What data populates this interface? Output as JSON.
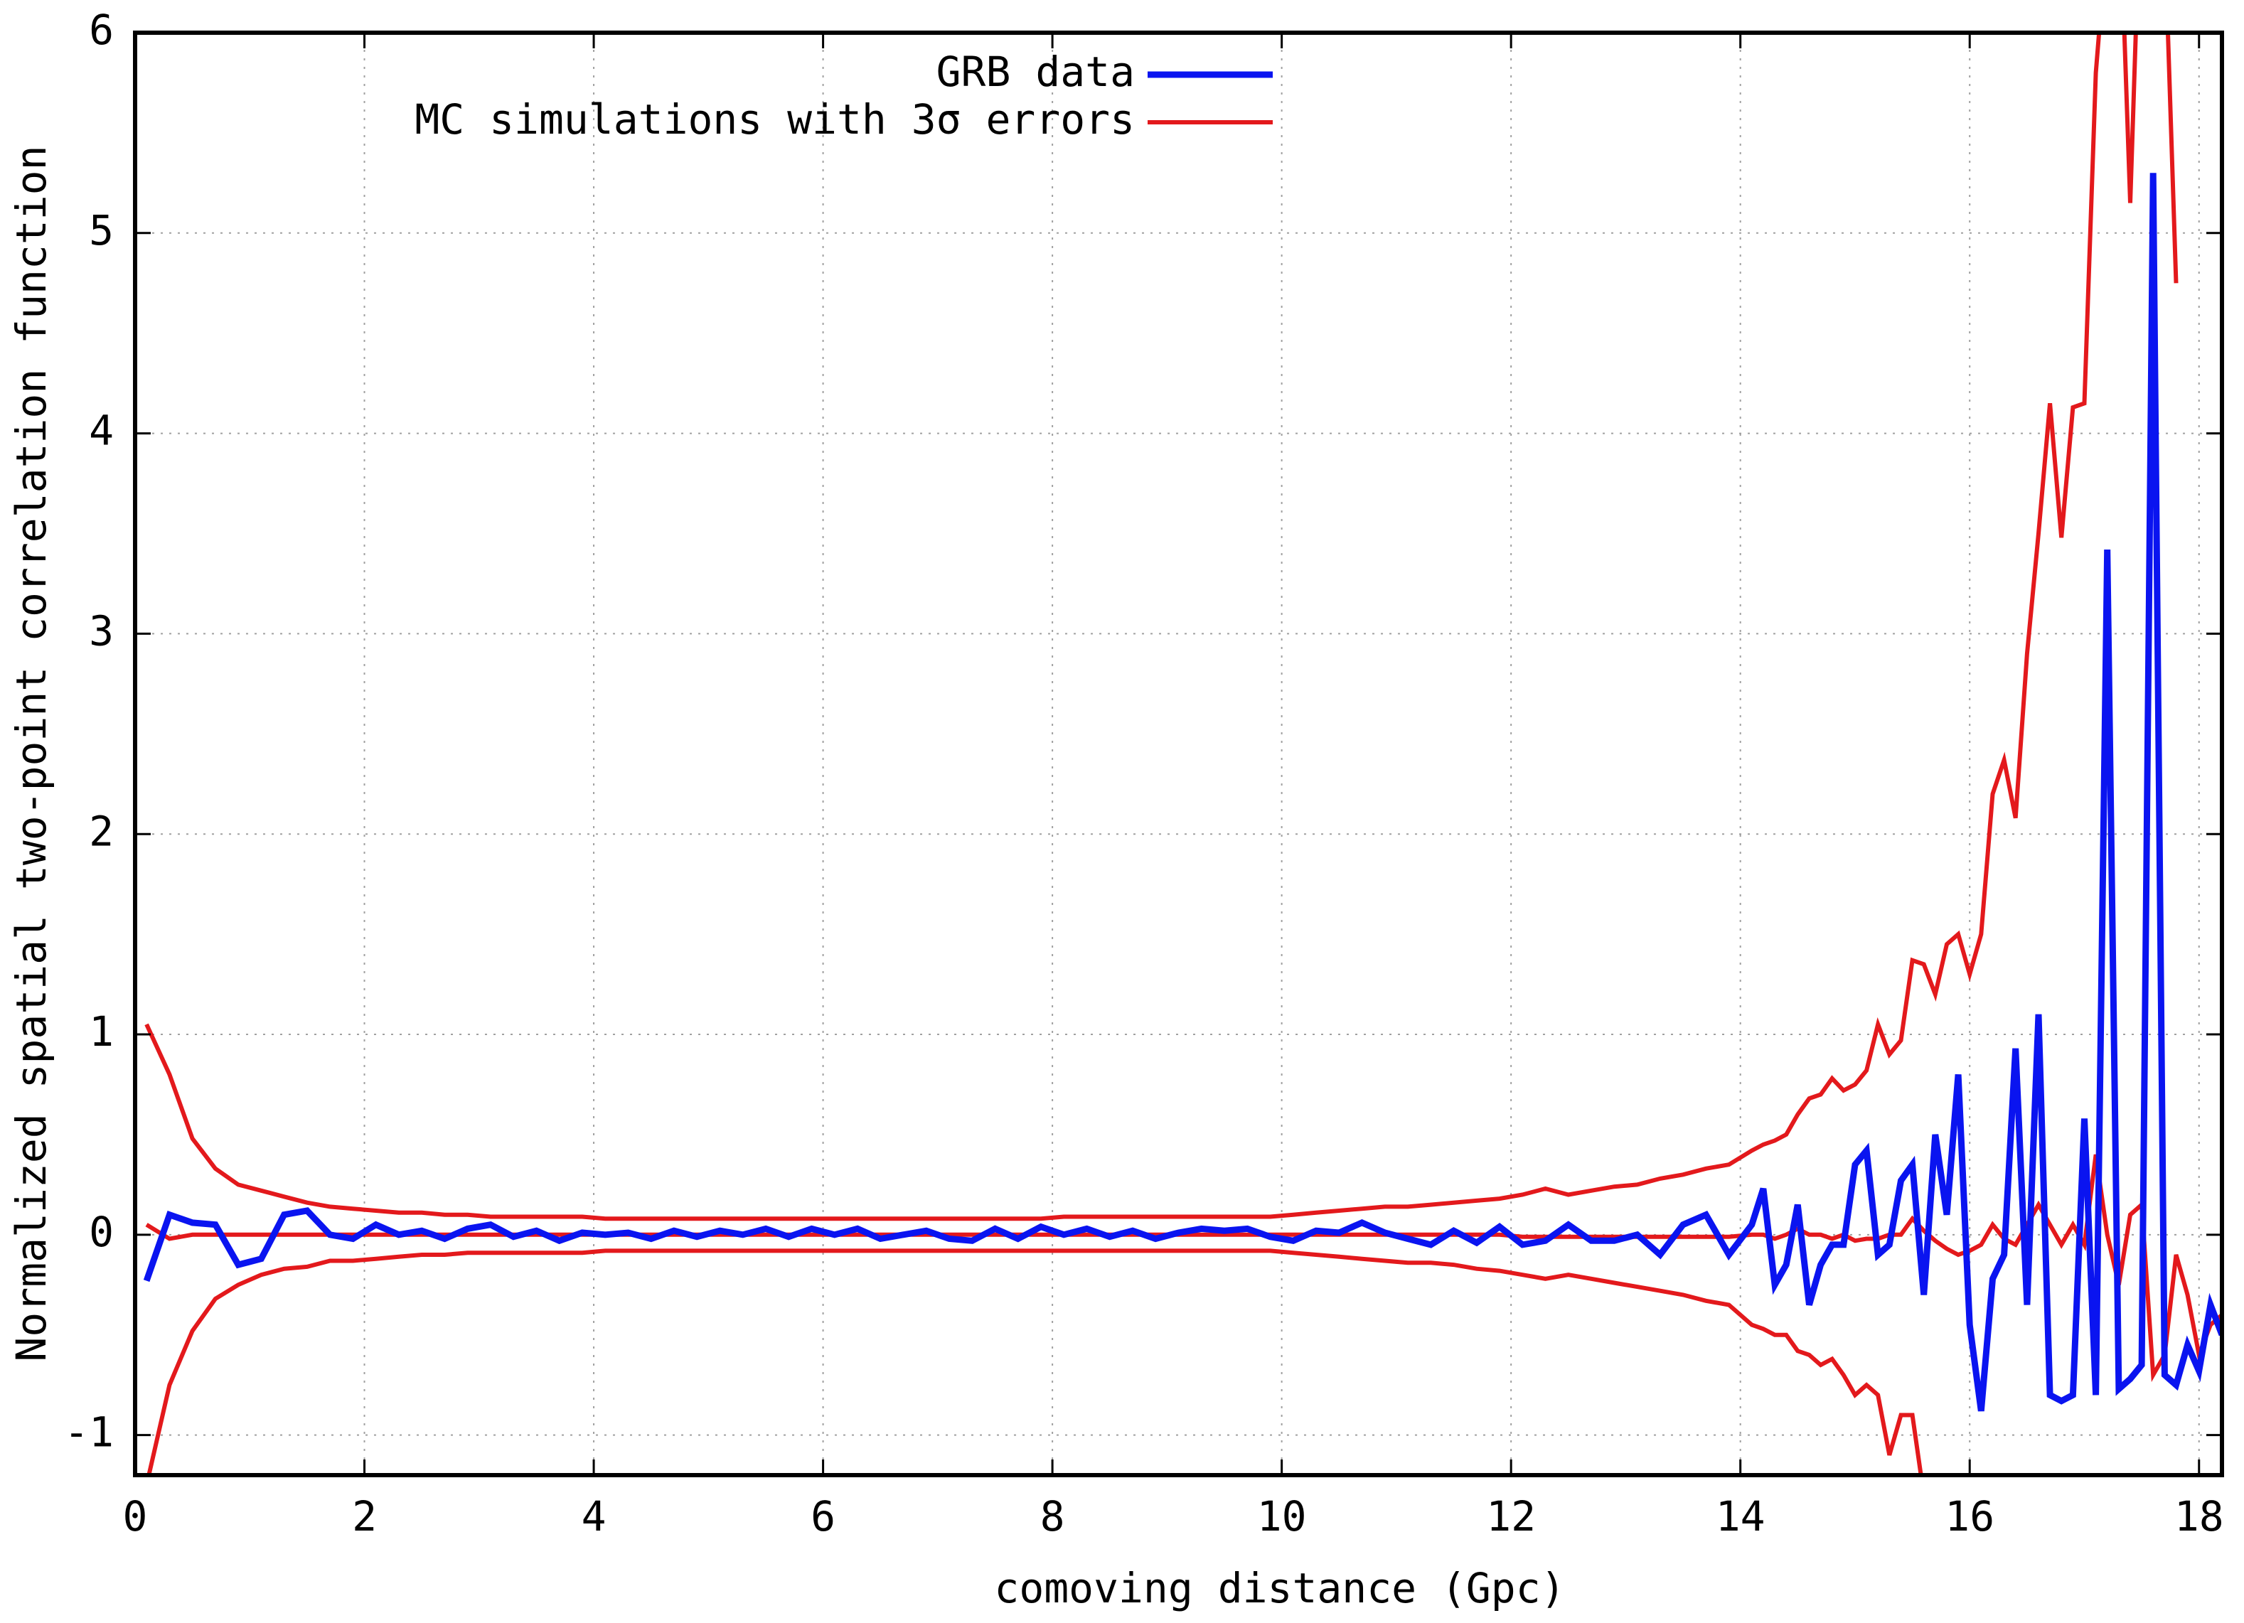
{
  "chart_data": {
    "type": "line",
    "x_label": "comoving distance (Gpc)",
    "y_label": "Normalized spatial two-point correlation function",
    "xlim": [
      0,
      18.2
    ],
    "ylim": [
      -1.2,
      6
    ],
    "xticks": [
      0,
      2,
      4,
      6,
      8,
      10,
      12,
      14,
      16,
      18
    ],
    "yticks": [
      -1,
      0,
      1,
      2,
      3,
      4,
      5,
      6
    ],
    "grid": true,
    "legend": "top",
    "x": [
      0.1,
      0.3,
      0.5,
      0.7,
      0.9,
      1.1,
      1.3,
      1.5,
      1.7,
      1.9,
      2.1,
      2.3,
      2.5,
      2.7,
      2.9,
      3.1,
      3.3,
      3.5,
      3.7,
      3.9,
      4.1,
      4.3,
      4.5,
      4.7,
      4.9,
      5.1,
      5.3,
      5.5,
      5.7,
      5.9,
      6.1,
      6.3,
      6.5,
      6.7,
      6.9,
      7.1,
      7.3,
      7.5,
      7.7,
      7.9,
      8.1,
      8.3,
      8.5,
      8.7,
      8.9,
      9.1,
      9.3,
      9.5,
      9.7,
      9.9,
      10.1,
      10.3,
      10.5,
      10.7,
      10.9,
      11.1,
      11.3,
      11.5,
      11.7,
      11.9,
      12.1,
      12.3,
      12.5,
      12.7,
      12.9,
      13.1,
      13.3,
      13.5,
      13.7,
      13.9,
      14.1,
      14.2,
      14.3,
      14.4,
      14.5,
      14.6,
      14.7,
      14.8,
      14.9,
      15.0,
      15.1,
      15.2,
      15.3,
      15.4,
      15.5,
      15.6,
      15.7,
      15.8,
      15.9,
      16.0,
      16.1,
      16.2,
      16.3,
      16.4,
      16.5,
      16.6,
      16.7,
      16.8,
      16.9,
      17.0,
      17.1,
      17.2,
      17.3,
      17.4,
      17.5,
      17.6,
      17.7,
      17.8,
      17.9,
      18.0,
      18.1,
      18.2
    ],
    "series": [
      {
        "name": "GRB data",
        "color": "#0a14f0",
        "values": [
          -0.23,
          0.1,
          0.06,
          0.05,
          -0.15,
          -0.12,
          0.1,
          0.12,
          0.0,
          -0.02,
          0.05,
          0.0,
          0.02,
          -0.02,
          0.03,
          0.05,
          -0.01,
          0.02,
          -0.03,
          0.01,
          0.0,
          0.01,
          -0.02,
          0.02,
          -0.01,
          0.02,
          0.0,
          0.03,
          -0.01,
          0.03,
          0.0,
          0.03,
          -0.02,
          0.0,
          0.02,
          -0.02,
          -0.03,
          0.03,
          -0.02,
          0.04,
          0.0,
          0.03,
          -0.01,
          0.02,
          -0.02,
          0.01,
          0.03,
          0.02,
          0.03,
          -0.01,
          -0.03,
          0.02,
          0.01,
          0.06,
          0.01,
          -0.02,
          -0.05,
          0.02,
          -0.04,
          0.04,
          -0.05,
          -0.03,
          0.05,
          -0.03,
          -0.03,
          0.0,
          -0.1,
          0.05,
          0.1,
          -0.1,
          0.05,
          0.23,
          -0.25,
          -0.15,
          0.15,
          -0.35,
          -0.15,
          -0.05,
          -0.05,
          0.35,
          0.42,
          -0.1,
          -0.05,
          0.27,
          0.35,
          -0.3,
          0.5,
          0.1,
          0.8,
          -0.45,
          -0.88,
          -0.22,
          -0.1,
          0.93,
          -0.35,
          1.1,
          -0.8,
          -0.83,
          -0.8,
          0.58,
          -0.8,
          3.42,
          -0.77,
          -0.72,
          -0.65,
          5.3,
          -0.7,
          -0.75,
          -0.55,
          -0.68,
          -0.35,
          -0.5
        ]
      },
      {
        "name": "MC simulations with 3σ errors",
        "color": "#e3191c",
        "values": [
          0.05,
          -0.02,
          0.0,
          0.0,
          0.0,
          0.0,
          0.0,
          0.0,
          0.0,
          0.0,
          0.0,
          0.0,
          0.0,
          0.0,
          0.0,
          0.0,
          0.0,
          0.0,
          0.0,
          0.0,
          0.0,
          0.0,
          0.0,
          0.0,
          0.0,
          0.0,
          0.0,
          0.0,
          0.0,
          0.0,
          0.0,
          0.0,
          0.0,
          0.0,
          0.0,
          0.0,
          0.0,
          0.0,
          0.0,
          0.0,
          0.0,
          0.0,
          0.0,
          0.0,
          0.0,
          0.0,
          0.0,
          0.0,
          0.0,
          0.0,
          0.0,
          0.0,
          0.0,
          0.0,
          0.0,
          0.0,
          0.0,
          0.0,
          0.0,
          0.0,
          -0.01,
          -0.01,
          -0.01,
          -0.01,
          -0.01,
          -0.01,
          -0.01,
          -0.01,
          -0.01,
          -0.01,
          0.0,
          0.0,
          -0.02,
          0.0,
          0.03,
          0.0,
          0.0,
          -0.02,
          0.0,
          -0.03,
          -0.02,
          -0.02,
          0.0,
          0.0,
          0.08,
          0.02,
          -0.03,
          -0.07,
          -0.1,
          -0.08,
          -0.05,
          0.05,
          -0.02,
          -0.05,
          0.05,
          0.15,
          0.05,
          -0.05,
          0.05,
          -0.05,
          0.4,
          0.0,
          -0.25,
          0.1,
          0.15,
          -0.7,
          -0.6,
          -0.1,
          -0.3,
          -0.6,
          -0.45,
          -0.4
        ],
        "upper": [
          1.05,
          0.8,
          0.48,
          0.33,
          0.25,
          0.22,
          0.19,
          0.16,
          0.14,
          0.13,
          0.12,
          0.11,
          0.11,
          0.1,
          0.1,
          0.09,
          0.09,
          0.09,
          0.09,
          0.09,
          0.08,
          0.08,
          0.08,
          0.08,
          0.08,
          0.08,
          0.08,
          0.08,
          0.08,
          0.08,
          0.08,
          0.08,
          0.08,
          0.08,
          0.08,
          0.08,
          0.08,
          0.08,
          0.08,
          0.08,
          0.09,
          0.09,
          0.09,
          0.09,
          0.09,
          0.09,
          0.09,
          0.09,
          0.09,
          0.09,
          0.1,
          0.11,
          0.12,
          0.13,
          0.14,
          0.14,
          0.15,
          0.16,
          0.17,
          0.18,
          0.2,
          0.23,
          0.2,
          0.22,
          0.24,
          0.25,
          0.28,
          0.3,
          0.33,
          0.35,
          0.42,
          0.45,
          0.47,
          0.5,
          0.6,
          0.68,
          0.7,
          0.78,
          0.72,
          0.75,
          0.82,
          1.05,
          0.9,
          0.97,
          1.37,
          1.35,
          1.2,
          1.45,
          1.5,
          1.3,
          1.5,
          2.2,
          2.37,
          2.08,
          2.9,
          3.5,
          4.15,
          3.48,
          4.13,
          4.15,
          5.8,
          6.5,
          6.8,
          5.15,
          6.9,
          6.5,
          6.5,
          4.75,
          null,
          null,
          null,
          null
        ],
        "lower": [
          -1.25,
          -0.75,
          -0.48,
          -0.32,
          -0.25,
          -0.2,
          -0.17,
          -0.16,
          -0.13,
          -0.13,
          -0.12,
          -0.11,
          -0.1,
          -0.1,
          -0.09,
          -0.09,
          -0.09,
          -0.09,
          -0.09,
          -0.09,
          -0.08,
          -0.08,
          -0.08,
          -0.08,
          -0.08,
          -0.08,
          -0.08,
          -0.08,
          -0.08,
          -0.08,
          -0.08,
          -0.08,
          -0.08,
          -0.08,
          -0.08,
          -0.08,
          -0.08,
          -0.08,
          -0.08,
          -0.08,
          -0.08,
          -0.08,
          -0.08,
          -0.08,
          -0.08,
          -0.08,
          -0.08,
          -0.08,
          -0.08,
          -0.08,
          -0.09,
          -0.1,
          -0.11,
          -0.12,
          -0.13,
          -0.14,
          -0.14,
          -0.15,
          -0.17,
          -0.18,
          -0.2,
          -0.22,
          -0.2,
          -0.22,
          -0.24,
          -0.26,
          -0.28,
          -0.3,
          -0.33,
          -0.35,
          -0.45,
          -0.47,
          -0.5,
          -0.5,
          -0.58,
          -0.6,
          -0.65,
          -0.62,
          -0.7,
          -0.8,
          -0.75,
          -0.8,
          -1.1,
          -0.9,
          -0.9,
          -1.3,
          null,
          null,
          null,
          null,
          null,
          null,
          null,
          null,
          null,
          null,
          null,
          null,
          null,
          null,
          null,
          null,
          null,
          null,
          null,
          null,
          null,
          null,
          null,
          null,
          null,
          null
        ]
      }
    ]
  }
}
